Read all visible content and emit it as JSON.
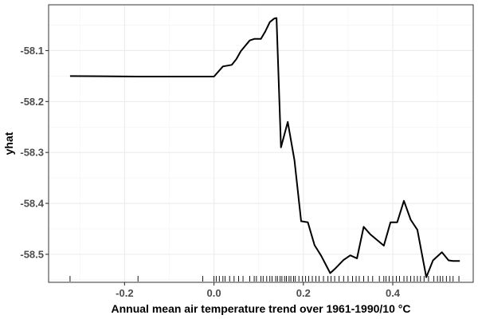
{
  "chart_data": {
    "type": "line",
    "title": "",
    "xlabel": "Annual mean air temperature trend over 1961-1990/10 °C",
    "ylabel": "yhat",
    "xlim": [
      -0.37,
      0.58
    ],
    "ylim": [
      -58.555,
      -58.01
    ],
    "grid": true,
    "legend": "none",
    "x_ticks": [
      {
        "value": -0.2,
        "label": "-0.2"
      },
      {
        "value": 0.0,
        "label": "0.0"
      },
      {
        "value": 0.2,
        "label": "0.2"
      },
      {
        "value": 0.4,
        "label": "0.4"
      }
    ],
    "y_ticks": [
      {
        "value": -58.1,
        "label": "-58.1"
      },
      {
        "value": -58.2,
        "label": "-58.2"
      },
      {
        "value": -58.3,
        "label": "-58.3"
      },
      {
        "value": -58.4,
        "label": "-58.4"
      },
      {
        "value": -58.5,
        "label": "-58.5"
      }
    ],
    "series": [
      {
        "color": "#000000",
        "x": [
          -0.322,
          -0.17,
          0.0,
          0.02,
          0.04,
          0.05,
          0.06,
          0.08,
          0.09,
          0.105,
          0.115,
          0.125,
          0.135,
          0.14,
          0.15,
          0.165,
          0.18,
          0.195,
          0.21,
          0.225,
          0.24,
          0.26,
          0.27,
          0.29,
          0.305,
          0.32,
          0.335,
          0.35,
          0.38,
          0.395,
          0.41,
          0.425,
          0.44,
          0.455,
          0.475,
          0.49,
          0.51,
          0.525,
          0.535,
          0.55
        ],
        "y": [
          -58.15,
          -58.151,
          -58.151,
          -58.131,
          -58.128,
          -58.117,
          -58.101,
          -58.08,
          -58.077,
          -58.077,
          -58.062,
          -58.044,
          -58.037,
          -58.036,
          -58.29,
          -58.24,
          -58.315,
          -58.435,
          -58.437,
          -58.482,
          -58.503,
          -58.537,
          -58.529,
          -58.511,
          -58.502,
          -58.508,
          -58.446,
          -58.461,
          -58.483,
          -58.437,
          -58.437,
          -58.395,
          -58.432,
          -58.452,
          -58.545,
          -58.512,
          -58.496,
          -58.512,
          -58.513,
          -58.513
        ]
      }
    ],
    "rug": [
      -0.322,
      -0.17,
      -0.025,
      0.0,
      0.005,
      0.012,
      0.02,
      0.025,
      0.035,
      0.045,
      0.055,
      0.065,
      0.08,
      0.09,
      0.095,
      0.105,
      0.11,
      0.118,
      0.125,
      0.13,
      0.138,
      0.142,
      0.148,
      0.152,
      0.158,
      0.162,
      0.168,
      0.172,
      0.178,
      0.182,
      0.19,
      0.198,
      0.205,
      0.212,
      0.22,
      0.228,
      0.235,
      0.245,
      0.255,
      0.262,
      0.27,
      0.28,
      0.29,
      0.3,
      0.31,
      0.318,
      0.325,
      0.335,
      0.345,
      0.355,
      0.37,
      0.38,
      0.385,
      0.392,
      0.4,
      0.408,
      0.415,
      0.425,
      0.432,
      0.44,
      0.448,
      0.455,
      0.462,
      0.47,
      0.48,
      0.492,
      0.5,
      0.506,
      0.512,
      0.52,
      0.528,
      0.535,
      0.548
    ]
  }
}
